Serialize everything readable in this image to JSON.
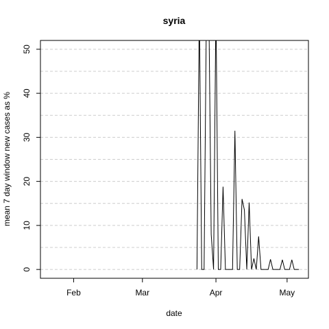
{
  "chart_data": {
    "type": "line",
    "title": "syria",
    "xlabel": "date",
    "ylabel": "mean  7  day window new cases as %",
    "x_ticks": [
      "Feb",
      "Mar",
      "Apr",
      "May"
    ],
    "x_tick_dates": [
      "2020-02-01",
      "2020-03-01",
      "2020-04-01",
      "2020-05-01"
    ],
    "xlim": [
      "2020-01-18",
      "2020-05-10"
    ],
    "y_ticks": [
      0,
      10,
      20,
      30,
      40,
      50
    ],
    "ylim": [
      -2,
      52
    ],
    "grid": "horizontal dashed",
    "line_color": "#000000",
    "grid_color": "#cccccc",
    "series": [
      {
        "x": [
          "2020-03-24",
          "2020-03-25",
          "2020-03-26",
          "2020-03-27",
          "2020-03-28",
          "2020-03-29",
          "2020-03-30",
          "2020-03-31",
          "2020-04-01",
          "2020-04-02",
          "2020-04-03",
          "2020-04-04",
          "2020-04-05",
          "2020-04-06",
          "2020-04-07",
          "2020-04-08",
          "2020-04-09",
          "2020-04-10",
          "2020-04-11",
          "2020-04-12",
          "2020-04-13",
          "2020-04-14",
          "2020-04-15",
          "2020-04-16",
          "2020-04-17",
          "2020-04-18",
          "2020-04-19",
          "2020-04-20",
          "2020-04-21",
          "2020-04-22",
          "2020-04-23",
          "2020-04-24",
          "2020-04-25",
          "2020-04-26",
          "2020-04-27",
          "2020-04-28",
          "2020-04-29",
          "2020-04-30",
          "2020-05-01",
          "2020-05-02",
          "2020-05-03",
          "2020-05-04",
          "2020-05-05",
          "2020-05-06"
        ],
        "values": [
          0,
          60,
          0,
          0,
          60,
          60,
          8,
          0,
          60,
          0,
          0,
          18.8,
          0,
          0,
          0,
          0,
          31.5,
          0,
          0,
          16,
          13.5,
          0,
          15.2,
          0,
          2.5,
          0,
          7.5,
          0,
          0,
          0,
          0,
          2.3,
          0,
          0,
          0,
          0,
          2.2,
          0,
          0,
          0,
          2.2,
          0,
          0,
          0
        ]
      }
    ]
  }
}
